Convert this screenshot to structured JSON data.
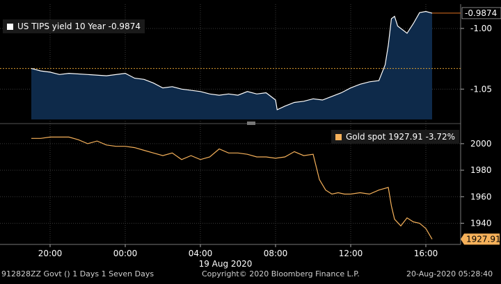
{
  "chart_data": [
    {
      "type": "area",
      "series": [
        {
          "name": "US TIPS yield 10 Year",
          "last_value": "-0.9874",
          "color": "#ffffff",
          "fill": "#0e2a4a",
          "x": [
            "19:00",
            "19:30",
            "20:00",
            "20:30",
            "21:00",
            "22:00",
            "23:00",
            "00:00",
            "00:30",
            "01:00",
            "01:30",
            "02:00",
            "02:30",
            "03:00",
            "04:00",
            "04:30",
            "05:00",
            "05:30",
            "06:00",
            "06:30",
            "07:00",
            "07:30",
            "08:00",
            "08:05",
            "08:30",
            "09:00",
            "09:30",
            "10:00",
            "10:30",
            "11:00",
            "11:30",
            "12:00",
            "12:30",
            "13:00",
            "13:30",
            "13:50",
            "14:00",
            "14:10",
            "14:20",
            "14:30",
            "15:00",
            "15:20",
            "15:40",
            "16:00",
            "16:20"
          ],
          "values": [
            -1.033,
            -1.035,
            -1.036,
            -1.038,
            -1.037,
            -1.038,
            -1.039,
            -1.037,
            -1.041,
            -1.042,
            -1.045,
            -1.049,
            -1.048,
            -1.05,
            -1.052,
            -1.054,
            -1.055,
            -1.054,
            -1.055,
            -1.052,
            -1.054,
            -1.053,
            -1.059,
            -1.067,
            -1.064,
            -1.061,
            -1.06,
            -1.058,
            -1.059,
            -1.056,
            -1.053,
            -1.049,
            -1.046,
            -1.044,
            -1.043,
            -1.03,
            -1.014,
            -0.992,
            -0.99,
            -0.998,
            -1.004,
            -0.996,
            -0.987,
            -0.986,
            -0.9874
          ]
        }
      ],
      "y_ticks": [
        "-1.00",
        "-1.05"
      ],
      "ylim": [
        -1.075,
        -0.98
      ],
      "reference_line": -1.033,
      "last_label": "-0.9874"
    },
    {
      "type": "line",
      "series": [
        {
          "name": "Gold spot",
          "last_value": "1927.91",
          "change": "-3.72%",
          "color": "#f6b15a",
          "x": [
            "19:00",
            "19:30",
            "20:00",
            "20:30",
            "21:00",
            "21:30",
            "22:00",
            "22:30",
            "23:00",
            "23:30",
            "00:00",
            "00:30",
            "01:00",
            "01:30",
            "02:00",
            "02:30",
            "03:00",
            "03:30",
            "04:00",
            "04:30",
            "05:00",
            "05:30",
            "06:00",
            "06:30",
            "07:00",
            "07:30",
            "08:00",
            "08:30",
            "09:00",
            "09:30",
            "10:00",
            "10:20",
            "10:40",
            "11:00",
            "11:20",
            "11:40",
            "12:00",
            "12:30",
            "13:00",
            "13:30",
            "14:00",
            "14:10",
            "14:20",
            "14:40",
            "15:00",
            "15:20",
            "15:40",
            "16:00",
            "16:20"
          ],
          "values": [
            2004,
            2004,
            2005,
            2005,
            2005,
            2003,
            2000,
            2002,
            1999,
            1998,
            1998,
            1997,
            1995,
            1993,
            1991,
            1993,
            1988,
            1991,
            1988,
            1990,
            1996,
            1993,
            1993,
            1992,
            1990,
            1990,
            1989,
            1990,
            1994,
            1991,
            1992,
            1973,
            1965,
            1962,
            1963,
            1962,
            1962,
            1963,
            1962,
            1965,
            1967,
            1953,
            1943,
            1938,
            1944,
            1941,
            1940,
            1936,
            1928
          ]
        }
      ],
      "y_ticks": [
        "2000",
        "1980",
        "1960",
        "1940"
      ],
      "ylim": [
        1924,
        2012
      ],
      "last_label": "1927.91"
    }
  ],
  "x_axis": {
    "ticks": [
      "20:00",
      "00:00",
      "04:00",
      "08:00",
      "12:00",
      "16:00"
    ],
    "date_label": "19 Aug 2020"
  },
  "legend_top": {
    "text": "US TIPS yield 10 Year  -0.9874",
    "color": "#ffffff"
  },
  "legend_bottom": {
    "text": "Gold spot  1927.91  -3.72%",
    "color": "#f6b15a"
  },
  "footer": {
    "left": "912828ZZ Govt () 1 Days 1 Seven Days",
    "center": "Copyright© 2020 Bloomberg Finance L.P.",
    "right": "20-Aug-2020 05:28:40"
  },
  "colors": {
    "background": "#000000",
    "grid": "#3a3a3a",
    "accent": "#f6b15a",
    "ref_line": "#e0a030"
  }
}
